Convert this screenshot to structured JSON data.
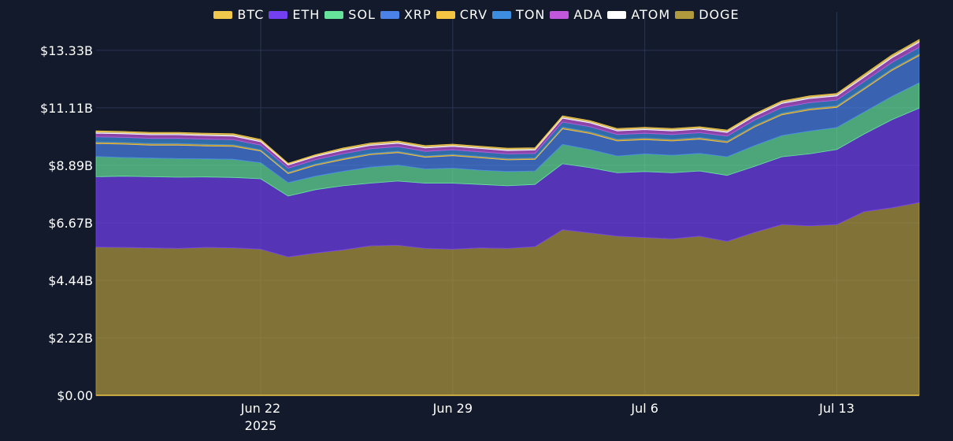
{
  "chart_data": {
    "type": "area",
    "stacked": true,
    "title": "",
    "xlabel": "",
    "ylabel": "",
    "ylim": [
      0,
      14000000000
    ],
    "y_ticks": [
      0,
      2222222222,
      4444444444,
      6666666666,
      8888888888,
      11111111111,
      13333333333
    ],
    "y_tick_labels": [
      "$0.00",
      "$2.22B",
      "$4.44B",
      "$6.67B",
      "$8.89B",
      "$11.11B",
      "$13.33B"
    ],
    "x_ticks": [
      "2025-06-22",
      "2025-06-29",
      "2025-07-06",
      "2025-07-13"
    ],
    "x_tick_labels": [
      "Jun 22",
      "Jun 29",
      "Jul 6",
      "Jul 13"
    ],
    "x_year_label": "2025",
    "xlim": [
      "2025-06-16",
      "2025-07-16"
    ],
    "grid": true,
    "legend_position": "top-center",
    "x": [
      "2025-06-16",
      "2025-06-17",
      "2025-06-18",
      "2025-06-19",
      "2025-06-20",
      "2025-06-21",
      "2025-06-22",
      "2025-06-23",
      "2025-06-24",
      "2025-06-25",
      "2025-06-26",
      "2025-06-27",
      "2025-06-28",
      "2025-06-29",
      "2025-06-30",
      "2025-07-01",
      "2025-07-02",
      "2025-07-03",
      "2025-07-04",
      "2025-07-05",
      "2025-07-06",
      "2025-07-07",
      "2025-07-08",
      "2025-07-09",
      "2025-07-10",
      "2025-07-11",
      "2025-07-12",
      "2025-07-13",
      "2025-07-14",
      "2025-07-15",
      "2025-07-16"
    ],
    "series": [
      {
        "name": "DOGE",
        "color": "#b19a3d",
        "values": [
          5.73,
          5.72,
          5.7,
          5.68,
          5.72,
          5.7,
          5.65,
          5.35,
          5.5,
          5.62,
          5.78,
          5.8,
          5.68,
          5.65,
          5.7,
          5.68,
          5.75,
          6.4,
          6.28,
          6.15,
          6.1,
          6.05,
          6.15,
          5.95,
          6.3,
          6.6,
          6.55,
          6.6,
          7.1,
          7.25,
          7.45
        ]
      },
      {
        "name": "ETH",
        "color": "#7240f0",
        "values": [
          2.72,
          2.75,
          2.75,
          2.75,
          2.72,
          2.72,
          2.72,
          2.35,
          2.45,
          2.48,
          2.42,
          2.48,
          2.52,
          2.55,
          2.45,
          2.42,
          2.4,
          2.55,
          2.52,
          2.45,
          2.55,
          2.55,
          2.52,
          2.55,
          2.55,
          2.62,
          2.78,
          2.9,
          3.0,
          3.4,
          3.65
        ]
      },
      {
        "name": "SOL",
        "color": "#66e39a",
        "values": [
          0.78,
          0.72,
          0.72,
          0.72,
          0.7,
          0.7,
          0.62,
          0.52,
          0.52,
          0.56,
          0.62,
          0.62,
          0.55,
          0.58,
          0.55,
          0.55,
          0.52,
          0.75,
          0.7,
          0.65,
          0.68,
          0.68,
          0.68,
          0.72,
          0.8,
          0.82,
          0.88,
          0.85,
          0.85,
          0.9,
          0.98
        ]
      },
      {
        "name": "XRP",
        "color": "#4a82e8",
        "values": [
          0.5,
          0.52,
          0.5,
          0.52,
          0.5,
          0.5,
          0.45,
          0.35,
          0.42,
          0.45,
          0.48,
          0.48,
          0.45,
          0.48,
          0.48,
          0.45,
          0.45,
          0.6,
          0.62,
          0.58,
          0.55,
          0.55,
          0.55,
          0.55,
          0.72,
          0.8,
          0.82,
          0.78,
          0.88,
          1.0,
          1.05
        ]
      },
      {
        "name": "CRV",
        "color": "#f4c542",
        "values": [
          0.06,
          0.06,
          0.06,
          0.06,
          0.06,
          0.06,
          0.05,
          0.05,
          0.05,
          0.05,
          0.05,
          0.05,
          0.05,
          0.05,
          0.05,
          0.05,
          0.05,
          0.06,
          0.06,
          0.06,
          0.06,
          0.06,
          0.06,
          0.06,
          0.06,
          0.06,
          0.06,
          0.06,
          0.06,
          0.06,
          0.06
        ]
      },
      {
        "name": "TON",
        "color": "#3d8ee0",
        "values": [
          0.2,
          0.2,
          0.2,
          0.2,
          0.2,
          0.2,
          0.18,
          0.16,
          0.17,
          0.18,
          0.18,
          0.18,
          0.18,
          0.18,
          0.18,
          0.18,
          0.18,
          0.2,
          0.2,
          0.19,
          0.19,
          0.19,
          0.19,
          0.19,
          0.21,
          0.22,
          0.22,
          0.22,
          0.24,
          0.25,
          0.26
        ]
      },
      {
        "name": "ADA",
        "color": "#c158dc",
        "values": [
          0.14,
          0.14,
          0.14,
          0.14,
          0.14,
          0.14,
          0.13,
          0.12,
          0.12,
          0.13,
          0.13,
          0.13,
          0.13,
          0.13,
          0.13,
          0.13,
          0.13,
          0.15,
          0.15,
          0.14,
          0.14,
          0.14,
          0.14,
          0.14,
          0.15,
          0.16,
          0.16,
          0.16,
          0.17,
          0.18,
          0.19
        ]
      },
      {
        "name": "ATOM",
        "color": "#ffffff",
        "values": [
          0.05,
          0.05,
          0.05,
          0.05,
          0.05,
          0.05,
          0.05,
          0.04,
          0.04,
          0.05,
          0.05,
          0.05,
          0.05,
          0.05,
          0.05,
          0.05,
          0.05,
          0.05,
          0.05,
          0.05,
          0.05,
          0.05,
          0.05,
          0.05,
          0.05,
          0.06,
          0.06,
          0.06,
          0.06,
          0.06,
          0.06
        ]
      },
      {
        "name": "BTC",
        "color": "#f0c84b",
        "values": [
          0.04,
          0.04,
          0.04,
          0.04,
          0.04,
          0.04,
          0.04,
          0.03,
          0.03,
          0.04,
          0.04,
          0.04,
          0.04,
          0.04,
          0.04,
          0.04,
          0.04,
          0.04,
          0.04,
          0.04,
          0.04,
          0.04,
          0.04,
          0.04,
          0.04,
          0.04,
          0.04,
          0.04,
          0.05,
          0.05,
          0.05
        ]
      }
    ],
    "value_unit": "billions USD",
    "legend_order": [
      "BTC",
      "ETH",
      "SOL",
      "XRP",
      "CRV",
      "TON",
      "ADA",
      "ATOM",
      "DOGE"
    ]
  }
}
